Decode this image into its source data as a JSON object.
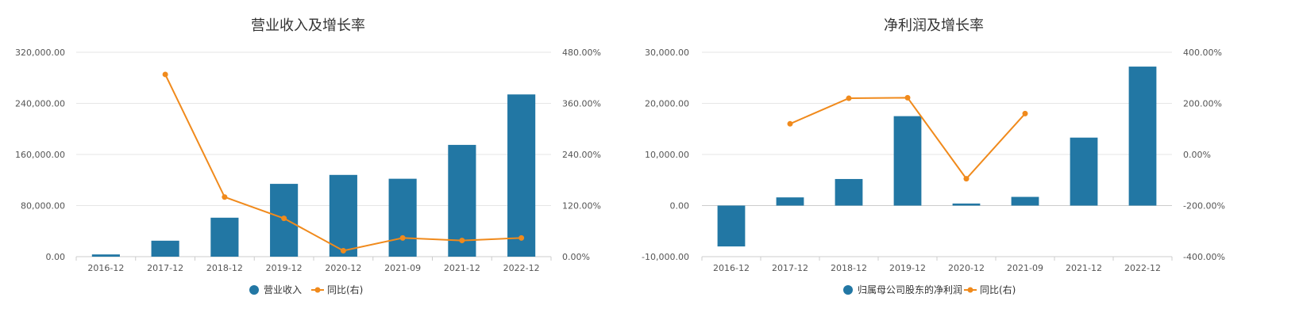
{
  "chart_data": [
    {
      "type": "bar",
      "title": "营业收入及增长率",
      "categories": [
        "2016-12",
        "2017-12",
        "2018-12",
        "2019-12",
        "2020-12",
        "2021-09",
        "2021-12",
        "2022-12"
      ],
      "ylim": [
        0,
        320000
      ],
      "yticks": [
        "0.00",
        "80,000.00",
        "160,000.00",
        "240,000.00",
        "320,000.00"
      ],
      "y2lim": [
        0,
        480
      ],
      "y2ticks": [
        "0.00%",
        "120.00%",
        "240.00%",
        "360.00%",
        "480.00%"
      ],
      "series": [
        {
          "name": "营业收入",
          "kind": "bar",
          "axis": "left",
          "color": "#2277a4",
          "values": [
            3500,
            25000,
            61000,
            114000,
            128000,
            122000,
            175000,
            254000
          ]
        },
        {
          "name": "同比(右)",
          "kind": "line",
          "axis": "right",
          "color": "#f08a1c",
          "values": [
            null,
            428,
            140,
            90,
            14,
            44,
            38,
            44
          ]
        }
      ],
      "legend": "bottom"
    },
    {
      "type": "bar",
      "title": "净利润及增长率",
      "categories": [
        "2016-12",
        "2017-12",
        "2018-12",
        "2019-12",
        "2020-12",
        "2021-09",
        "2021-12",
        "2022-12"
      ],
      "ylim": [
        -10000,
        30000
      ],
      "yticks": [
        "-10,000.00",
        "0.00",
        "10,000.00",
        "20,000.00",
        "30,000.00"
      ],
      "y2lim": [
        -400,
        400
      ],
      "y2ticks": [
        "-400.00%",
        "-200.00%",
        "0.00%",
        "200.00%",
        "400.00%"
      ],
      "series": [
        {
          "name": "归属母公司股东的净利润",
          "kind": "bar",
          "axis": "left",
          "color": "#2277a4",
          "values": [
            -8000,
            1600,
            5200,
            17500,
            400,
            1700,
            13300,
            27200
          ]
        },
        {
          "name": "同比(右)",
          "kind": "line",
          "axis": "right",
          "color": "#f08a1c",
          "values": [
            null,
            120,
            220,
            222,
            -95,
            160,
            null,
            null
          ]
        }
      ],
      "legend": "bottom"
    }
  ]
}
